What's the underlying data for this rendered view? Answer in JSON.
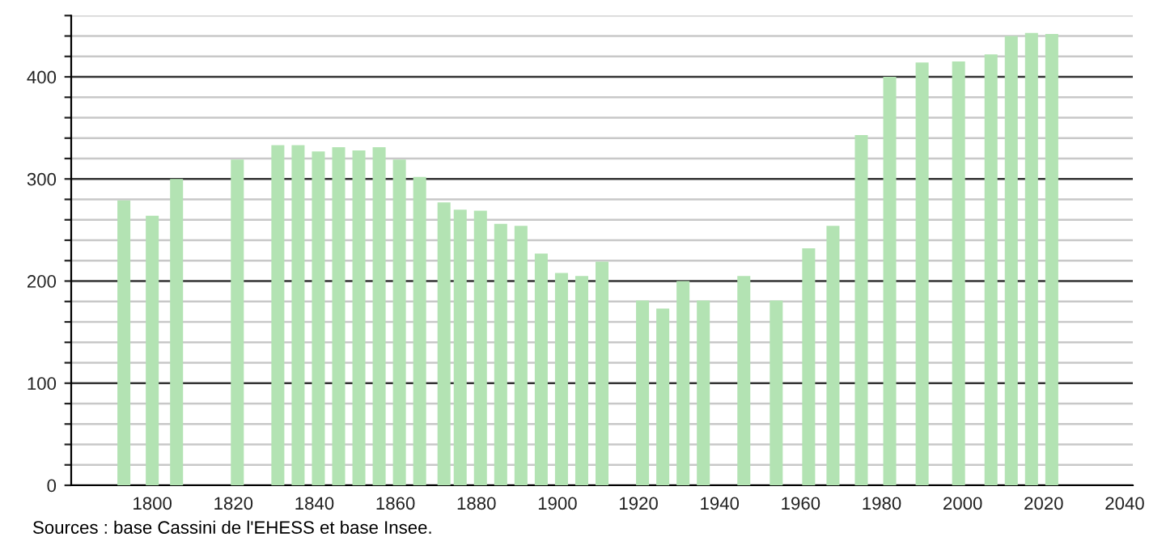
{
  "chart_data": {
    "type": "bar",
    "color": "#b3e3b3",
    "x": [
      1793,
      1800,
      1806,
      1821,
      1831,
      1836,
      1841,
      1846,
      1851,
      1856,
      1861,
      1866,
      1872,
      1876,
      1881,
      1886,
      1891,
      1896,
      1901,
      1906,
      1911,
      1921,
      1926,
      1931,
      1936,
      1946,
      1954,
      1962,
      1968,
      1975,
      1982,
      1990,
      1999,
      2007,
      2012,
      2017,
      2022
    ],
    "values": [
      279,
      264,
      300,
      319,
      333,
      333,
      327,
      331,
      328,
      331,
      319,
      302,
      277,
      270,
      269,
      256,
      254,
      227,
      208,
      205,
      219,
      181,
      173,
      200,
      181,
      205,
      181,
      232,
      254,
      343,
      400,
      414,
      415,
      422,
      440,
      443,
      442
    ],
    "xlim": [
      1780,
      2042
    ],
    "xticks": [
      1800,
      1820,
      1840,
      1860,
      1880,
      1900,
      1920,
      1940,
      1960,
      1980,
      2000,
      2020,
      2040
    ],
    "ylim": [
      0,
      460
    ],
    "yticks": [
      0,
      {
        "value": 20,
        "label": null
      },
      {
        "value": 40,
        "label": null
      },
      {
        "value": 60,
        "label": null
      },
      {
        "value": 80,
        "label": null
      },
      100,
      {
        "value": 120,
        "label": null
      },
      {
        "value": 140,
        "label": null
      },
      {
        "value": 160,
        "label": null
      },
      {
        "value": 180,
        "label": null
      },
      200,
      {
        "value": 220,
        "label": null
      },
      {
        "value": 240,
        "label": null
      },
      {
        "value": 260,
        "label": null
      },
      {
        "value": 280,
        "label": null
      },
      300,
      {
        "value": 320,
        "label": null
      },
      {
        "value": 340,
        "label": null
      },
      {
        "value": 360,
        "label": null
      },
      {
        "value": 380,
        "label": null
      },
      400,
      {
        "value": 420,
        "label": null
      },
      {
        "value": 440,
        "label": null
      },
      {
        "value": 460,
        "label": null
      }
    ],
    "grid": "y",
    "annotations": [
      "Sources : base Cassini de l'EHESS et base Insee."
    ]
  }
}
